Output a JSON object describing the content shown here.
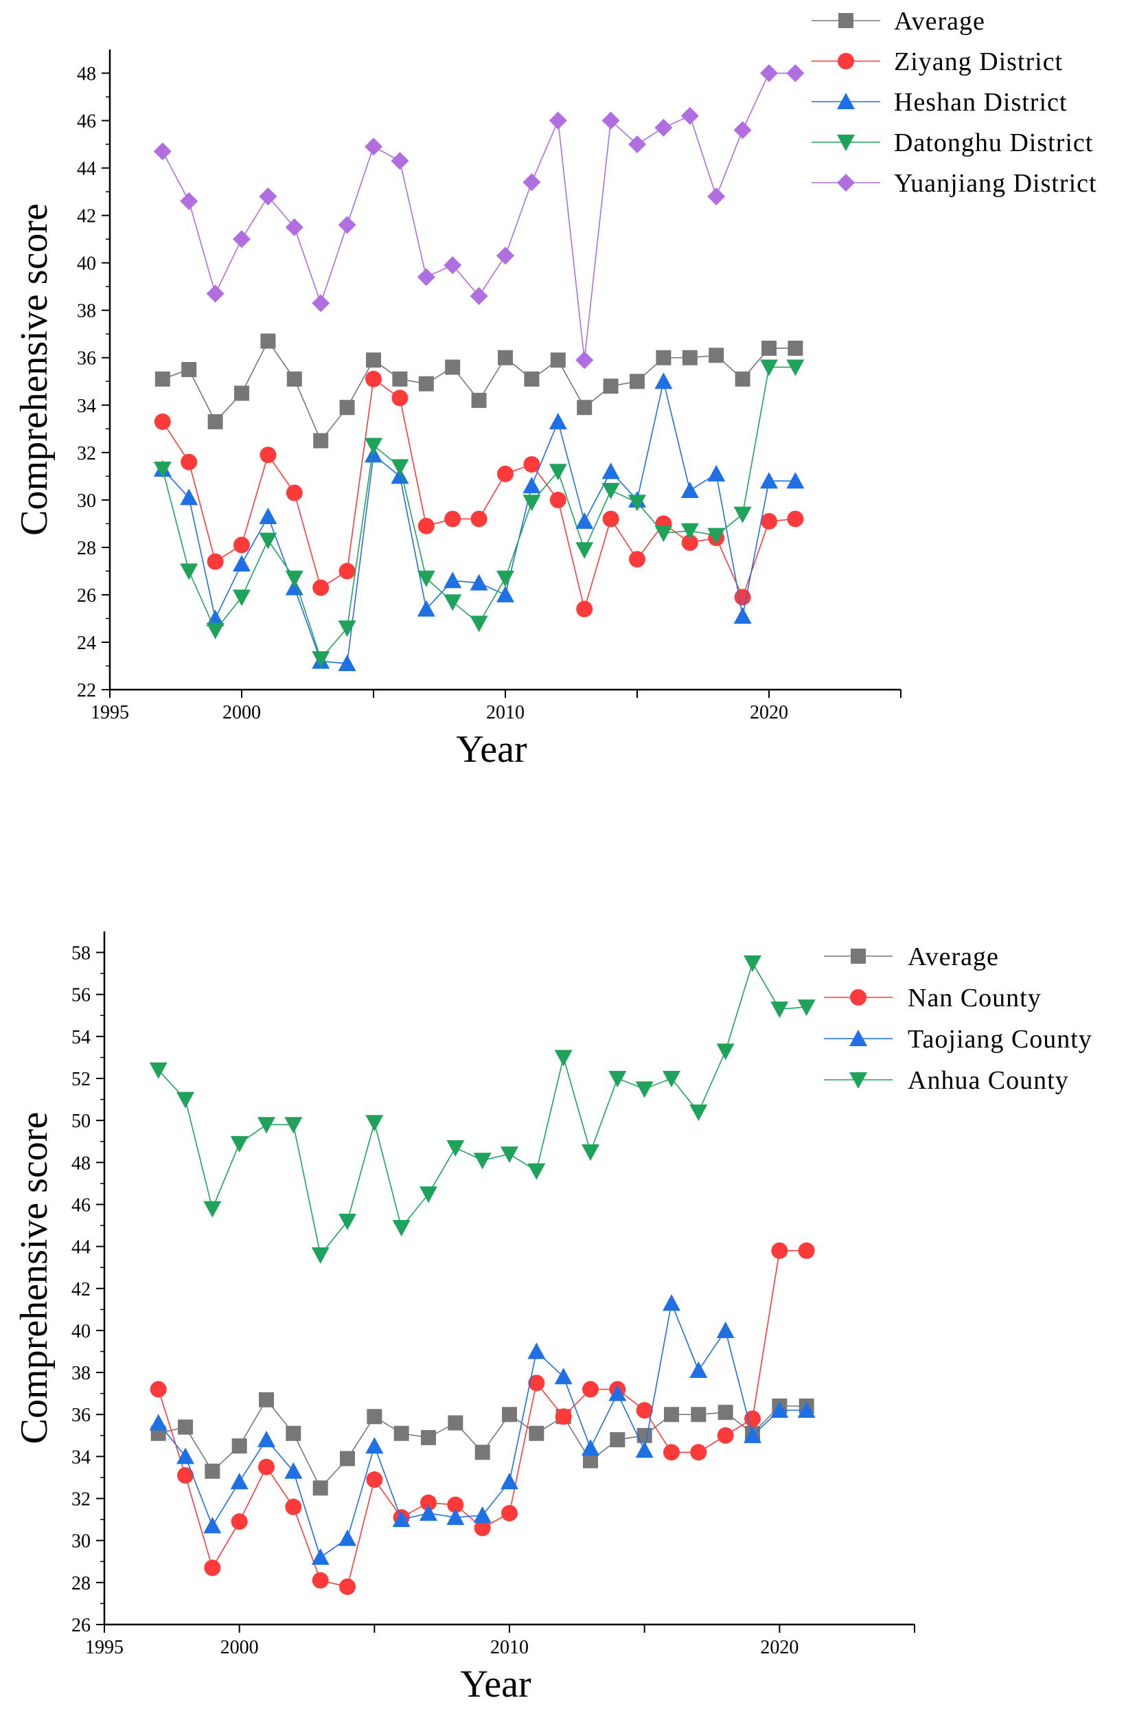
{
  "chart_data": [
    {
      "type": "line",
      "xlabel": "Year",
      "ylabel": "Comprehensive score",
      "xlim": [
        1995,
        2025
      ],
      "ylim": [
        22,
        49
      ],
      "xticks": [
        1995,
        2000,
        2010,
        2020
      ],
      "xtick_labels": [
        "1995",
        "2000",
        "2010",
        "2020"
      ],
      "yticks": [
        22,
        24,
        26,
        28,
        30,
        32,
        34,
        36,
        38,
        40,
        42,
        44,
        46,
        48
      ],
      "ytick_labels": [
        "22",
        "24",
        "26",
        "28",
        "30",
        "32",
        "34",
        "36",
        "38",
        "40",
        "42",
        "44",
        "46",
        "48"
      ],
      "legend_position": "top-right",
      "x": [
        1997,
        1998,
        1999,
        2000,
        2001,
        2002,
        2003,
        2004,
        2005,
        2006,
        2007,
        2008,
        2009,
        2010,
        2011,
        2012,
        2013,
        2014,
        2015,
        2016,
        2017,
        2018,
        2019,
        2020,
        2021
      ],
      "series": [
        {
          "name": "Average",
          "marker": "square",
          "color": "#777777",
          "values": [
            35.1,
            35.5,
            33.3,
            34.5,
            36.7,
            35.1,
            32.5,
            33.9,
            35.9,
            35.1,
            34.9,
            35.6,
            34.2,
            36.0,
            35.1,
            35.9,
            33.9,
            34.8,
            35.0,
            36.0,
            36.0,
            36.1,
            35.1,
            36.4,
            36.4
          ]
        },
        {
          "name": "Ziyang District",
          "marker": "circle",
          "color": "#ff3a3a",
          "values": [
            33.3,
            31.6,
            27.4,
            28.1,
            31.9,
            30.3,
            26.3,
            27.0,
            35.1,
            34.3,
            28.9,
            29.2,
            29.2,
            31.1,
            31.5,
            30.0,
            25.4,
            29.2,
            27.5,
            29.0,
            28.2,
            28.4,
            25.9,
            29.1,
            29.2
          ]
        },
        {
          "name": "Heshan District",
          "marker": "triangle-up",
          "color": "#1f6fe5",
          "values": [
            31.3,
            30.1,
            25.0,
            27.3,
            29.3,
            26.3,
            23.2,
            23.1,
            31.9,
            31.0,
            25.4,
            26.6,
            26.5,
            26.0,
            30.6,
            33.3,
            29.1,
            31.2,
            30.0,
            35.0,
            30.4,
            31.1,
            25.1,
            30.8,
            30.8
          ]
        },
        {
          "name": "Datonghu District",
          "marker": "triangle-down",
          "color": "#1fa35a",
          "values": [
            31.3,
            27.0,
            24.5,
            25.9,
            28.3,
            26.7,
            23.3,
            24.6,
            32.3,
            31.4,
            26.7,
            25.7,
            24.8,
            26.7,
            29.9,
            31.2,
            27.9,
            30.4,
            29.9,
            28.6,
            28.7,
            28.5,
            29.4,
            35.6,
            35.6
          ]
        },
        {
          "name": "Yuanjiang District",
          "marker": "diamond",
          "color": "#b06ee0",
          "values": [
            44.7,
            42.6,
            38.7,
            41.0,
            42.8,
            41.5,
            38.3,
            41.6,
            44.9,
            44.3,
            39.4,
            39.9,
            38.6,
            40.3,
            43.4,
            46.0,
            35.9,
            46.0,
            45.0,
            45.7,
            46.2,
            42.8,
            45.6,
            48.0,
            48.0
          ]
        }
      ]
    },
    {
      "type": "line",
      "xlabel": "Year",
      "ylabel": "Comprehensive score",
      "xlim": [
        1995,
        2025
      ],
      "ylim": [
        26,
        59
      ],
      "xticks": [
        1995,
        2000,
        2010,
        2020
      ],
      "xtick_labels": [
        "1995",
        "2000",
        "2010",
        "2020"
      ],
      "yticks": [
        26,
        28,
        30,
        32,
        34,
        36,
        38,
        40,
        42,
        44,
        46,
        48,
        50,
        52,
        54,
        56,
        58
      ],
      "ytick_labels": [
        "26",
        "28",
        "30",
        "32",
        "34",
        "36",
        "38",
        "40",
        "42",
        "44",
        "46",
        "48",
        "50",
        "52",
        "54",
        "56",
        "58"
      ],
      "legend_position": "top-right",
      "x": [
        1997,
        1998,
        1999,
        2000,
        2001,
        2002,
        2003,
        2004,
        2005,
        2006,
        2007,
        2008,
        2009,
        2010,
        2011,
        2012,
        2013,
        2014,
        2015,
        2016,
        2017,
        2018,
        2019,
        2020,
        2021
      ],
      "series": [
        {
          "name": "Average",
          "marker": "square",
          "color": "#777777",
          "values": [
            35.1,
            35.4,
            33.3,
            34.5,
            36.7,
            35.1,
            32.5,
            33.9,
            35.9,
            35.1,
            34.9,
            35.6,
            34.2,
            36.0,
            35.1,
            35.9,
            33.8,
            34.8,
            35.0,
            36.0,
            36.0,
            36.1,
            35.1,
            36.4,
            36.4
          ]
        },
        {
          "name": "Nan County",
          "marker": "circle",
          "color": "#ff3a3a",
          "values": [
            37.2,
            33.1,
            28.7,
            30.9,
            33.5,
            31.6,
            28.1,
            27.8,
            32.9,
            31.1,
            31.8,
            31.7,
            30.6,
            31.3,
            37.5,
            35.9,
            37.2,
            37.2,
            36.2,
            34.2,
            34.2,
            35.0,
            35.8,
            43.8,
            43.8
          ]
        },
        {
          "name": "Taojiang County",
          "marker": "triangle-up",
          "color": "#1f6fe5",
          "values": [
            35.6,
            34.0,
            30.7,
            32.8,
            34.8,
            33.3,
            29.2,
            30.1,
            34.5,
            31.0,
            31.3,
            31.1,
            31.2,
            32.8,
            39.0,
            37.8,
            34.4,
            37.0,
            34.3,
            41.3,
            38.1,
            40.0,
            35.0,
            36.2,
            36.2
          ]
        },
        {
          "name": "Anhua County",
          "marker": "triangle-down",
          "color": "#1fa35a",
          "values": [
            52.4,
            51.0,
            45.8,
            48.9,
            49.8,
            49.8,
            43.6,
            45.2,
            49.9,
            44.9,
            46.5,
            48.7,
            48.1,
            48.4,
            47.6,
            53.0,
            48.5,
            52.0,
            51.5,
            52.0,
            50.4,
            53.3,
            57.5,
            55.3,
            55.4
          ]
        }
      ]
    }
  ]
}
